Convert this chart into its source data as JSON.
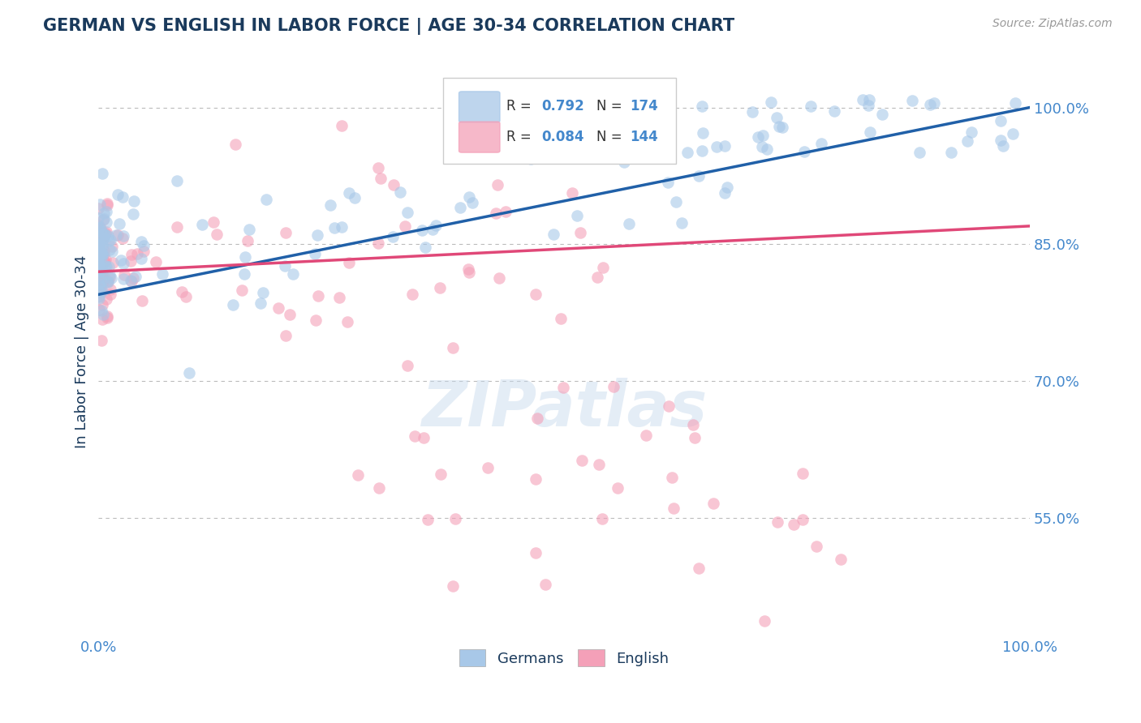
{
  "title": "GERMAN VS ENGLISH IN LABOR FORCE | AGE 30-34 CORRELATION CHART",
  "source": "Source: ZipAtlas.com",
  "ylabel": "In Labor Force | Age 30-34",
  "xlim": [
    0.0,
    1.0
  ],
  "ylim": [
    0.42,
    1.045
  ],
  "yticks": [
    0.55,
    0.7,
    0.85,
    1.0
  ],
  "ytick_labels": [
    "55.0%",
    "70.0%",
    "85.0%",
    "100.0%"
  ],
  "watermark": "ZIPatlas",
  "blue_color": "#a8c8e8",
  "pink_color": "#f4a0b8",
  "blue_line_color": "#2060a8",
  "pink_line_color": "#e04878",
  "blue_N": 174,
  "pink_N": 144,
  "blue_R": 0.792,
  "pink_R": 0.084,
  "title_color": "#1a3a5c",
  "axis_label_color": "#4488cc",
  "grid_color": "#bbbbbb",
  "background_color": "#ffffff"
}
